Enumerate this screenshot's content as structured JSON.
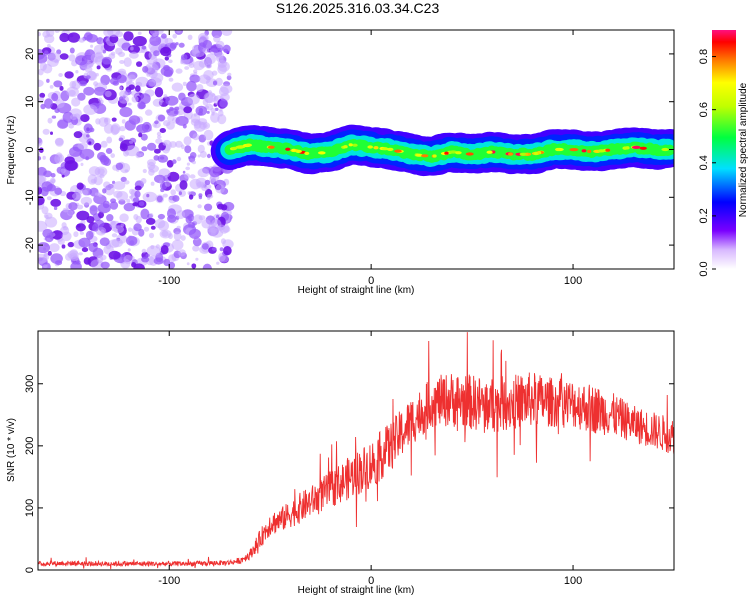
{
  "title": "S126.2025.316.03.34.C23",
  "chart_data": [
    {
      "type": "heatmap",
      "name": "spectrogram",
      "xlabel": "Height of straight line (km)",
      "ylabel": "Frequency (Hz)",
      "xlim": [
        -165,
        150
      ],
      "ylim": [
        -25,
        25
      ],
      "xticks": [
        -100,
        0,
        100
      ],
      "yticks": [
        -20,
        -10,
        0,
        10,
        20
      ],
      "colorbar": {
        "label": "Normalized spectral amplitude",
        "range": [
          0.0,
          0.9
        ],
        "ticks": [
          0.0,
          0.2,
          0.4,
          0.6,
          0.8
        ],
        "tick_labels": [
          "0.0",
          "0.2",
          "0.4",
          "0.6",
          "0.8"
        ]
      },
      "noise_region": {
        "x_from": -165,
        "x_to": -70,
        "amplitude_range": [
          0.0,
          0.15
        ]
      },
      "signal_ridge": {
        "x": [
          -70,
          -60,
          -50,
          -40,
          -30,
          -20,
          -10,
          0,
          10,
          20,
          30,
          40,
          50,
          60,
          70,
          80,
          90,
          100,
          110,
          120,
          130,
          140,
          148
        ],
        "frequency": [
          0,
          1,
          0.5,
          0,
          -1,
          -0.5,
          1,
          0.5,
          0,
          -1,
          -1.5,
          -0.5,
          -1,
          -0.5,
          -1,
          -1,
          0,
          0,
          -0.5,
          0,
          0.5,
          0,
          0
        ],
        "peak_amplitude": 0.9
      }
    },
    {
      "type": "line",
      "name": "snr",
      "xlabel": "Height of straight line (km)",
      "ylabel": "SNR (10 * v/v)",
      "xlim": [
        -165,
        150
      ],
      "ylim": [
        0,
        385
      ],
      "xticks": [
        -100,
        0,
        100
      ],
      "yticks": [
        0,
        100,
        200,
        300
      ],
      "color": "#ee3030",
      "series": [
        {
          "name": "SNR",
          "x": [
            -165,
            -150,
            -130,
            -110,
            -90,
            -70,
            -65,
            -60,
            -55,
            -50,
            -45,
            -40,
            -35,
            -30,
            -20,
            -10,
            0,
            10,
            20,
            30,
            40,
            50,
            60,
            70,
            80,
            90,
            100,
            110,
            120,
            130,
            140,
            150
          ],
          "values": [
            10,
            11,
            10,
            10,
            10,
            12,
            15,
            25,
            50,
            75,
            80,
            90,
            100,
            110,
            130,
            150,
            170,
            200,
            240,
            270,
            275,
            270,
            265,
            270,
            275,
            270,
            268,
            260,
            250,
            235,
            225,
            215
          ],
          "noise_amplitude": [
            4,
            4,
            4,
            4,
            4,
            4,
            5,
            8,
            15,
            20,
            20,
            22,
            25,
            25,
            30,
            35,
            40,
            40,
            40,
            40,
            45,
            45,
            45,
            45,
            45,
            40,
            40,
            40,
            35,
            30,
            30,
            30
          ]
        }
      ]
    }
  ]
}
